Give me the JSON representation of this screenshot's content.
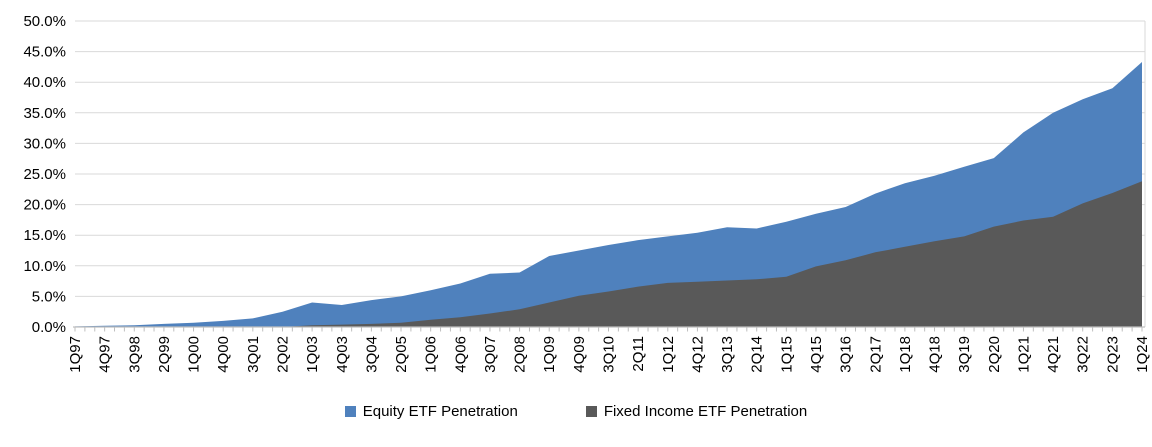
{
  "chart_data": {
    "type": "area",
    "title": "",
    "xlabel": "",
    "ylabel": "",
    "ylim": [
      0,
      50
    ],
    "ytick_step": 5,
    "ytick_labels": [
      "0.0%",
      "5.0%",
      "10.0%",
      "15.0%",
      "20.0%",
      "25.0%",
      "30.0%",
      "35.0%",
      "40.0%",
      "45.0%",
      "50.0%"
    ],
    "grid": "horizontal",
    "legend_position": "bottom",
    "overlapping_areas": true,
    "minor_xticks": "every quarter",
    "categories": [
      "1Q97",
      "4Q97",
      "3Q98",
      "2Q99",
      "1Q00",
      "4Q00",
      "3Q01",
      "2Q02",
      "1Q03",
      "4Q03",
      "3Q04",
      "2Q05",
      "1Q06",
      "4Q06",
      "3Q07",
      "2Q08",
      "1Q09",
      "4Q09",
      "3Q10",
      "2Q11",
      "1Q12",
      "4Q12",
      "3Q13",
      "2Q14",
      "1Q15",
      "4Q15",
      "3Q16",
      "2Q17",
      "1Q18",
      "4Q18",
      "3Q19",
      "2Q20",
      "1Q21",
      "4Q21",
      "3Q22",
      "2Q23",
      "1Q24"
    ],
    "series": [
      {
        "name": "Equity ETF Penetration",
        "color": "#4F81BD",
        "values": [
          0.1,
          0.2,
          0.3,
          0.5,
          0.7,
          1.0,
          1.4,
          2.5,
          4.0,
          3.6,
          4.4,
          5.0,
          6.0,
          7.1,
          8.7,
          8.9,
          11.6,
          12.5,
          13.4,
          14.2,
          14.8,
          15.4,
          16.3,
          16.1,
          17.2,
          18.5,
          19.6,
          21.8,
          23.5,
          24.7,
          26.2,
          27.6,
          31.8,
          35.0,
          37.2,
          39.0,
          43.3
        ]
      },
      {
        "name": "Fixed Income ETF Penetration",
        "color": "#595959",
        "values": [
          0,
          0,
          0,
          0,
          0,
          0,
          0,
          0,
          0.3,
          0.4,
          0.5,
          0.7,
          1.2,
          1.6,
          2.2,
          2.9,
          4.0,
          5.1,
          5.8,
          6.6,
          7.2,
          7.4,
          7.6,
          7.8,
          8.2,
          9.9,
          10.9,
          12.2,
          13.1,
          14.0,
          14.8,
          16.4,
          17.4,
          18.0,
          20.2,
          21.9,
          23.8
        ]
      }
    ],
    "colors": {
      "gridline": "#D9D9D9",
      "axis": "#BFBFBF",
      "text": "#000000",
      "background": "#FFFFFF"
    }
  }
}
